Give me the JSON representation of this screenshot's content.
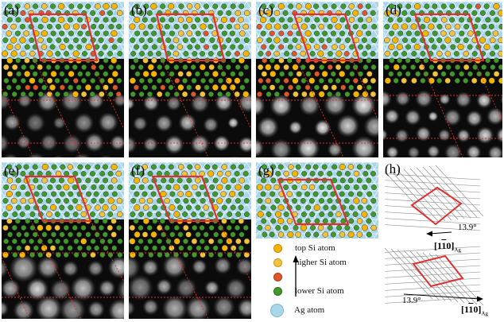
{
  "figure": {
    "panel_labels": [
      "(a)",
      "(b)",
      "(c)",
      "(d)",
      "(e)",
      "(f)",
      "(g)",
      "(h)"
    ],
    "legend": {
      "top_si": "top Si  atom",
      "higher_si": "higher Si  atom",
      "lower_si": "lower Si  atom",
      "ag": "Ag atom"
    },
    "h_panel": {
      "angle_upper": "13.9°",
      "angle_lower": "13.9°",
      "direction_upper": "[1",
      "direction_upper_bar": "1",
      "direction_upper_end": "0]",
      "direction_lower": "[1",
      "direction_lower_bar": "1",
      "direction_lower_end": "0]",
      "subscript": "Ag"
    },
    "colors": {
      "ag": "#a9d6ea",
      "top_si": "#f4b400",
      "higher_si": "#f2c23a",
      "mid_si": "#e0562a",
      "lower_si": "#3f9a2a",
      "cell": "#e03030"
    }
  }
}
